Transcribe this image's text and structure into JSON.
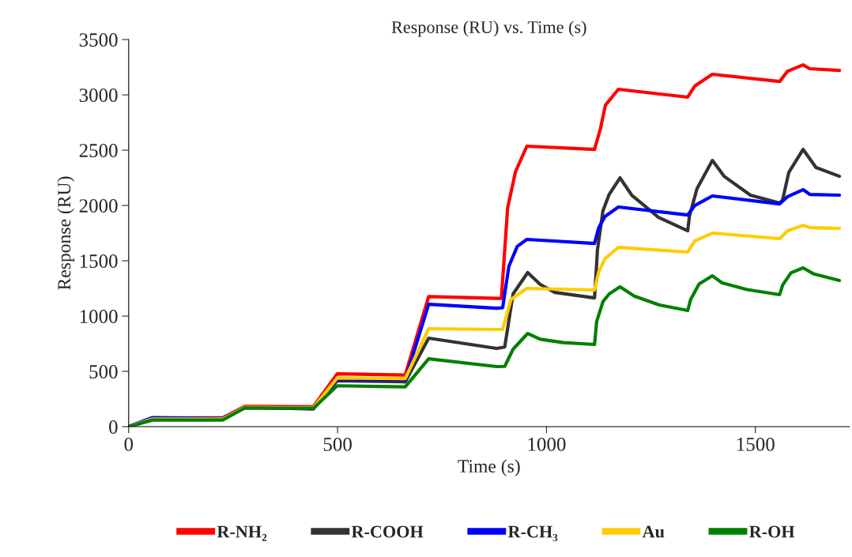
{
  "chart_data": {
    "type": "line",
    "title": "Response (RU) vs. Time (s)",
    "xlabel": "Time (s)",
    "ylabel": "Response (RU)",
    "xlim": [
      0,
      1725
    ],
    "xticks": [
      0,
      500,
      1000,
      1500
    ],
    "ylim": [
      0,
      3500
    ],
    "yticks": [
      0,
      500,
      1000,
      1500,
      2000,
      2500,
      3000,
      3500
    ],
    "grid": false,
    "legend": "bottom",
    "marker": "none",
    "line_style": "solid",
    "series": [
      {
        "name": "R-NH₂",
        "color": "#ff0000",
        "x": [
          0,
          57,
          225,
          278,
          442,
          499,
          662,
          718,
          881,
          892,
          907,
          926,
          953,
          1115,
          1129,
          1141,
          1172,
          1338,
          1355,
          1397,
          1558,
          1577,
          1614,
          1630,
          1701
        ],
        "values": [
          0,
          79,
          80,
          183,
          180,
          478,
          467,
          1176,
          1160,
          1160,
          1979,
          2307,
          2536,
          2507,
          2693,
          2907,
          3050,
          2979,
          3080,
          3186,
          3121,
          3214,
          3271,
          3236,
          3221
        ]
      },
      {
        "name": "R-COOH",
        "color": "#333333",
        "x": [
          0,
          57,
          225,
          278,
          442,
          499,
          662,
          718,
          881,
          900,
          920,
          955,
          985,
          1020,
          1115,
          1122,
          1135,
          1150,
          1176,
          1204,
          1268,
          1338,
          1342,
          1360,
          1397,
          1425,
          1488,
          1558,
          1565,
          1580,
          1614,
          1645,
          1701
        ],
        "values": [
          0,
          65,
          65,
          170,
          165,
          415,
          405,
          800,
          707,
          720,
          1200,
          1393,
          1286,
          1214,
          1164,
          1600,
          1950,
          2100,
          2250,
          2093,
          1893,
          1771,
          1900,
          2150,
          2407,
          2264,
          2093,
          2021,
          2050,
          2300,
          2507,
          2343,
          2264
        ]
      },
      {
        "name": "R-CH₃",
        "color": "#0000ff",
        "x": [
          0,
          57,
          225,
          278,
          442,
          499,
          662,
          718,
          881,
          895,
          910,
          930,
          953,
          1115,
          1125,
          1140,
          1172,
          1338,
          1355,
          1397,
          1558,
          1577,
          1614,
          1630,
          1701
        ],
        "values": [
          0,
          82,
          75,
          175,
          160,
          430,
          425,
          1107,
          1071,
          1075,
          1450,
          1630,
          1693,
          1657,
          1800,
          1900,
          1986,
          1914,
          2000,
          2086,
          2014,
          2080,
          2143,
          2100,
          2093
        ]
      },
      {
        "name": "Au",
        "color": "#ffcc00",
        "x": [
          0,
          57,
          225,
          278,
          442,
          499,
          662,
          718,
          881,
          895,
          915,
          953,
          1115,
          1125,
          1140,
          1172,
          1338,
          1355,
          1397,
          1558,
          1577,
          1614,
          1630,
          1701
        ],
        "values": [
          0,
          70,
          70,
          175,
          170,
          440,
          435,
          886,
          879,
          880,
          1150,
          1250,
          1236,
          1400,
          1520,
          1621,
          1579,
          1680,
          1750,
          1700,
          1770,
          1821,
          1800,
          1793
        ]
      },
      {
        "name": "R-OH",
        "color": "#008000",
        "x": [
          0,
          57,
          225,
          278,
          442,
          499,
          662,
          718,
          881,
          900,
          920,
          955,
          985,
          1040,
          1115,
          1120,
          1135,
          1150,
          1176,
          1210,
          1270,
          1338,
          1345,
          1365,
          1397,
          1420,
          1480,
          1558,
          1565,
          1585,
          1614,
          1640,
          1701
        ],
        "values": [
          0,
          60,
          60,
          170,
          165,
          370,
          360,
          614,
          543,
          545,
          700,
          843,
          790,
          760,
          743,
          950,
          1130,
          1200,
          1264,
          1180,
          1100,
          1050,
          1150,
          1290,
          1364,
          1300,
          1240,
          1193,
          1280,
          1390,
          1436,
          1380,
          1321
        ]
      }
    ]
  }
}
